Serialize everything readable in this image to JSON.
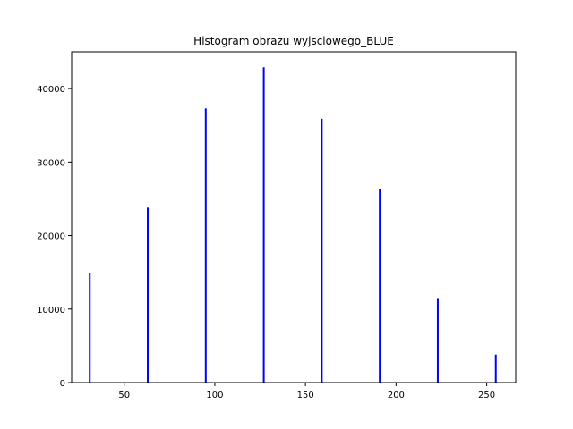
{
  "chart_data": {
    "type": "bar",
    "title": "Histogram obrazu wyjsciowego_BLUE",
    "xlabel": "",
    "ylabel": "",
    "x": [
      31,
      63,
      95,
      127,
      159,
      191,
      223,
      255
    ],
    "values": [
      14900,
      23800,
      37300,
      42900,
      35900,
      26300,
      11500,
      3800
    ],
    "xlim": [
      21,
      266
    ],
    "ylim": [
      0,
      45000
    ],
    "xticks": [
      50,
      100,
      150,
      200,
      250
    ],
    "yticks": [
      0,
      10000,
      20000,
      30000,
      40000
    ],
    "grid": false,
    "bar_color": "#0000ff"
  }
}
